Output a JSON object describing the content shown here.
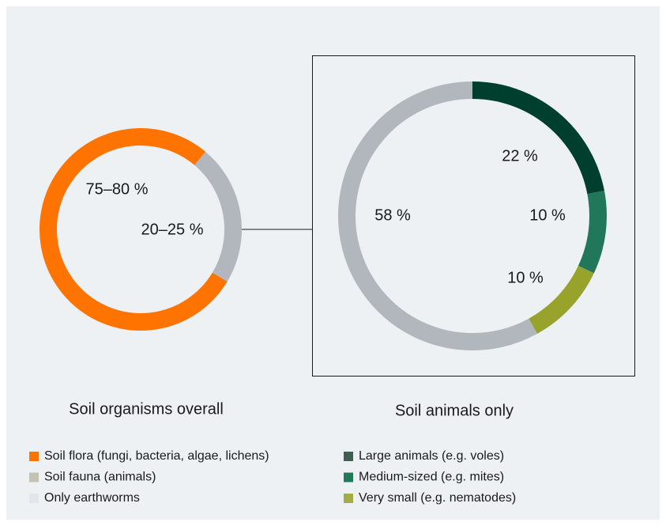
{
  "chart_data": [
    {
      "type": "donut",
      "title": "Soil organisms overall",
      "categories": [
        "Soil flora (fungi, bacteria, algae, lichens)",
        "Soil fauna (animals)"
      ],
      "values": [
        77.5,
        22.5
      ],
      "value_labels": [
        "75–80 %",
        "20–25 %"
      ],
      "colors": [
        "#ff7300",
        "#b1b7bd"
      ]
    },
    {
      "type": "donut",
      "title": "Soil animals only",
      "categories": [
        "Large animals (e.g. voles)",
        "Medium-sized (e.g. mites)",
        "Very small (e.g. nematodes)",
        "Soil fauna (animals)"
      ],
      "values": [
        22,
        10,
        10,
        58
      ],
      "value_labels": [
        "22 %",
        "10 %",
        "10 %",
        "58 %"
      ],
      "colors": [
        "#003f2e",
        "#20775a",
        "#97a32b",
        "#b1b7bd"
      ]
    }
  ],
  "legend": [
    {
      "label": "Soil flora (fungi, bacteria, algae, lichens)",
      "color": "#ff7300"
    },
    {
      "label": "Soil fauna (animals)",
      "color": "#c3c3b4"
    },
    {
      "label": "Only earthworms",
      "color": "#e2e6ea"
    },
    {
      "label": "Large animals (e.g. voles)",
      "color": "#3f5f50"
    },
    {
      "label": "Medium-sized (e.g. mites)",
      "color": "#1f7a55"
    },
    {
      "label": "Very small (e.g. nematodes)",
      "color": "#a3ad43"
    }
  ]
}
